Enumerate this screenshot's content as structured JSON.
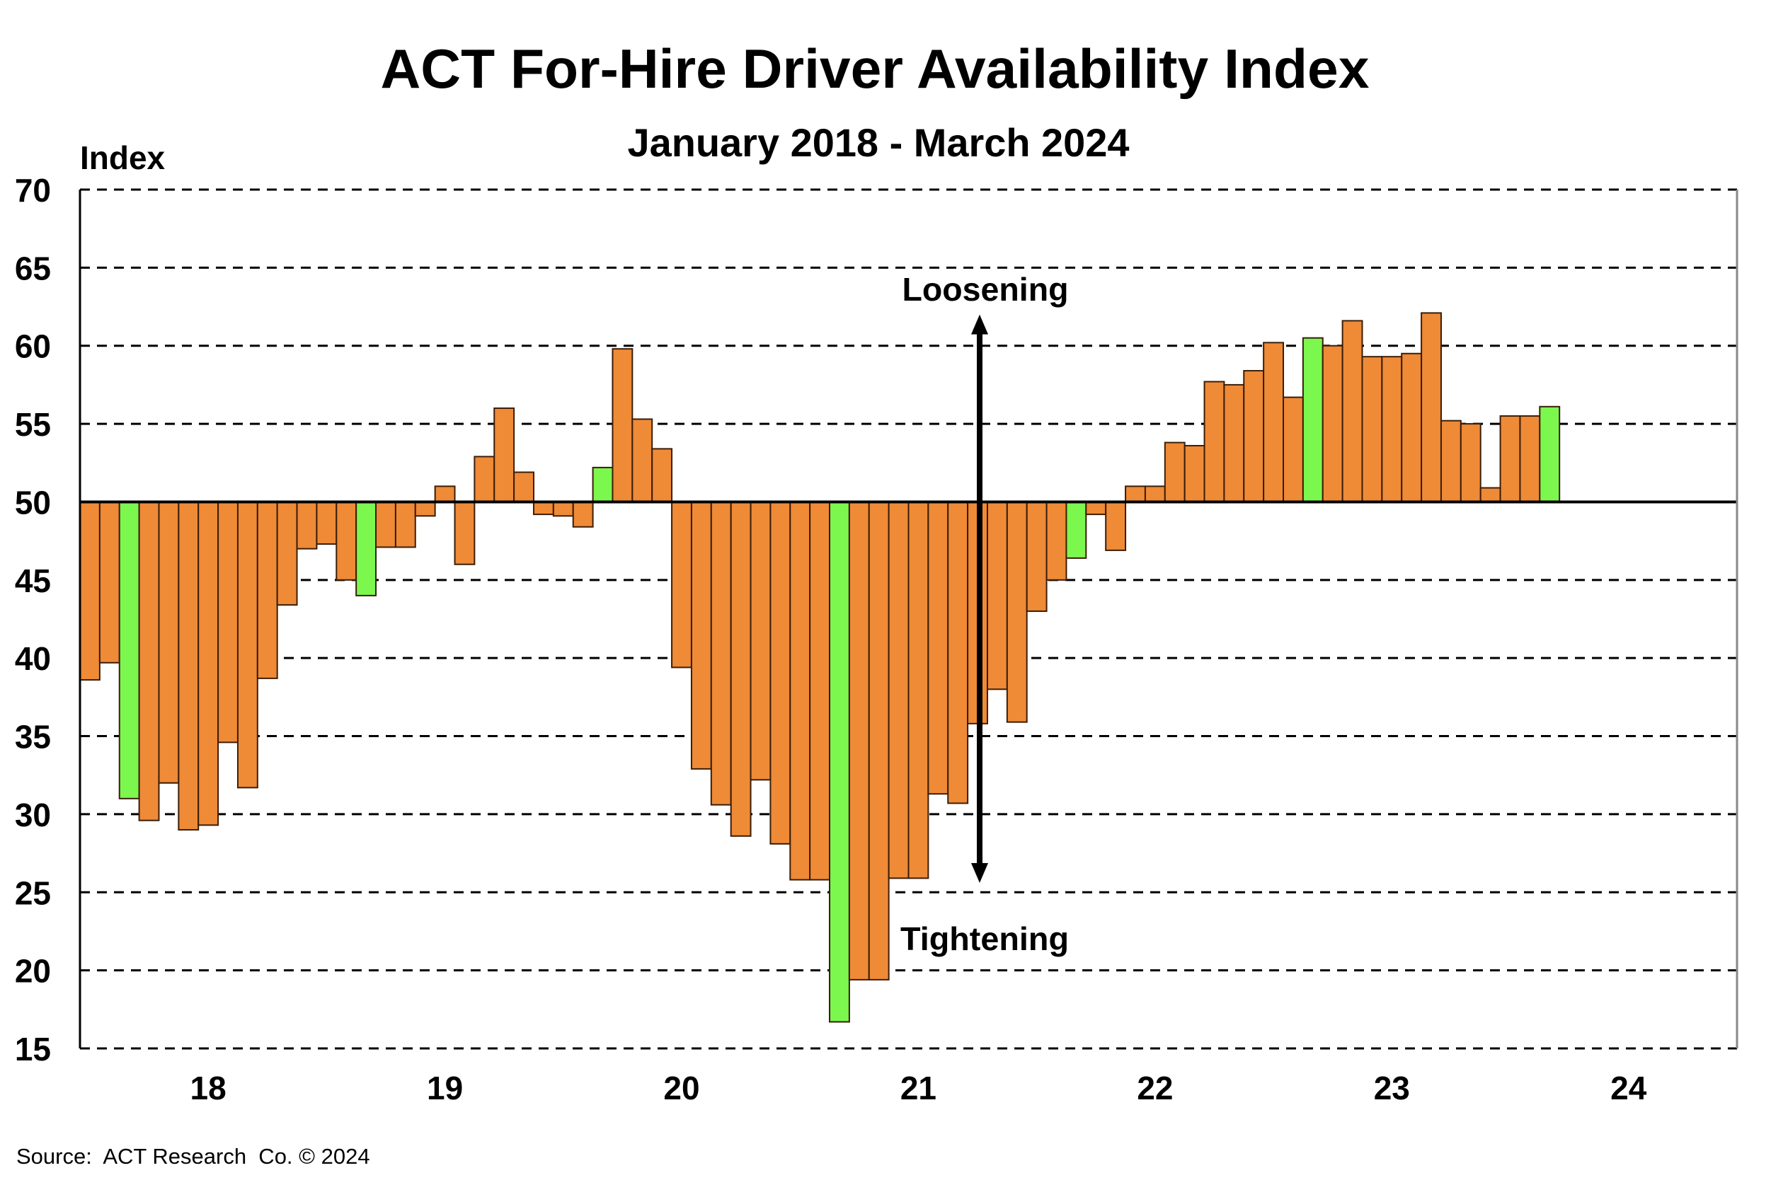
{
  "chart_data": {
    "type": "bar",
    "title": "ACT For-Hire Driver Availability Index",
    "subtitle": "January 2018 - March 2024",
    "ylabel": "Index",
    "xlabel": "",
    "ylim": [
      15,
      70
    ],
    "yticks": [
      70,
      65,
      60,
      55,
      50,
      45,
      40,
      35,
      30,
      25,
      20,
      15
    ],
    "baseline": 50,
    "xlim_months": [
      "2018-01",
      "2024-12"
    ],
    "xtick_labels": [
      "18",
      "19",
      "20",
      "21",
      "22",
      "23",
      "24"
    ],
    "grid": true,
    "colors": {
      "default": "#ef8a37",
      "highlight": "#7cf74e"
    },
    "annotations": {
      "up": "Loosening",
      "down": "Tightening",
      "arrow_top_value": 62,
      "arrow_bottom_value": 25.6
    },
    "source": "Source:  ACT Research  Co. © 2024",
    "start": "2018-01",
    "values": [
      38.6,
      39.7,
      31.0,
      29.6,
      32.0,
      29.0,
      29.3,
      34.6,
      31.7,
      38.7,
      43.4,
      47.0,
      47.3,
      45.0,
      44.0,
      47.1,
      47.1,
      49.1,
      51.0,
      46.0,
      52.9,
      56.0,
      51.9,
      49.2,
      49.1,
      48.4,
      52.2,
      59.8,
      55.3,
      53.4,
      39.4,
      32.9,
      30.6,
      28.6,
      32.2,
      28.1,
      25.8,
      25.8,
      16.7,
      19.4,
      19.4,
      25.9,
      25.9,
      31.3,
      30.7,
      35.8,
      38.0,
      35.9,
      43.0,
      45.0,
      46.4,
      49.2,
      46.9,
      51.0,
      51.0,
      53.8,
      53.6,
      57.7,
      57.5,
      58.4,
      60.2,
      56.7,
      60.5,
      60.0,
      61.6,
      59.3,
      59.3,
      59.5,
      62.1,
      55.2,
      55.0,
      50.9,
      55.5,
      55.5,
      56.1
    ],
    "highlight_indices": [
      2,
      14,
      26,
      38,
      50,
      62,
      74
    ]
  }
}
